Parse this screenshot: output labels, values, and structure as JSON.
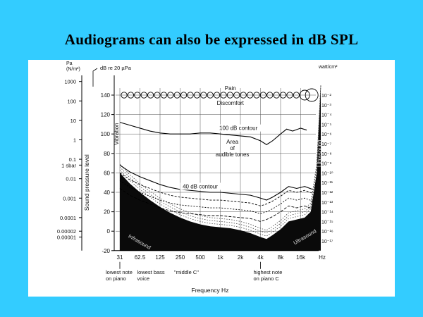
{
  "slide": {
    "title": "Audiograms can also be expressed in dB SPL",
    "background_color": "#33ccff"
  },
  "chart_data": {
    "type": "line",
    "x_labels": [
      "31",
      "62.5",
      "125",
      "250",
      "500",
      "1k",
      "2k",
      "4k",
      "8k",
      "16k"
    ],
    "x_unit": "Hz",
    "x_axis_label": "Frequency   Hz",
    "ylim_db": [
      -20,
      140
    ],
    "db_ticks": [
      "140",
      "120",
      "100",
      "80",
      "60",
      "40",
      "20",
      "0",
      "-20"
    ],
    "left_axis_header": "Pa\n(N/m²)",
    "pa_ticks": [
      {
        "label": "1000",
        "db": 154
      },
      {
        "label": "100",
        "db": 134
      },
      {
        "label": "10",
        "db": 114
      },
      {
        "label": "1",
        "db": 94
      },
      {
        "label": "0.1",
        "db": 74
      },
      {
        "label": "1 sbar",
        "db": 68
      },
      {
        "label": "0.01",
        "db": 54
      },
      {
        "label": "0.001",
        "db": 34
      },
      {
        "label": "0.0001",
        "db": 14
      },
      {
        "label": "0.00002",
        "db": 0
      },
      {
        "label": "0.00001",
        "db": -6
      }
    ],
    "db_ref_label": "dB re 20 µPa",
    "y_axis_label": "Sound pressure level",
    "right_axis_header": "watt/cm²",
    "right_ticks": [
      {
        "label": "10⁻²",
        "db": 140
      },
      {
        "label": "10⁻³",
        "db": 130
      },
      {
        "label": "10⁻⁴",
        "db": 120
      },
      {
        "label": "10⁻⁵",
        "db": 110
      },
      {
        "label": "10⁻⁶",
        "db": 100
      },
      {
        "label": "10⁻⁷",
        "db": 90
      },
      {
        "label": "10⁻⁸",
        "db": 80
      },
      {
        "label": "10⁻⁹",
        "db": 70
      },
      {
        "label": "10⁻¹⁰",
        "db": 60
      },
      {
        "label": "10⁻¹¹",
        "db": 50
      },
      {
        "label": "10⁻¹²",
        "db": 40
      },
      {
        "label": "10⁻¹³",
        "db": 30
      },
      {
        "label": "10⁻¹⁴",
        "db": 20
      },
      {
        "label": "10⁻¹⁵",
        "db": 10
      },
      {
        "label": "10⁻¹⁶",
        "db": 0
      },
      {
        "label": "10⁻¹⁷",
        "db": -10
      }
    ],
    "curves": {
      "pain": {
        "label": "Pain",
        "points": [
          [
            0,
            140
          ],
          [
            1,
            140
          ],
          [
            2,
            140
          ],
          [
            3,
            140
          ],
          [
            4,
            140
          ],
          [
            5,
            140
          ],
          [
            6,
            140
          ],
          [
            7,
            140
          ],
          [
            8,
            140
          ],
          [
            9,
            140
          ]
        ]
      },
      "discomfort": {
        "label": "Discomfort",
        "points": [
          [
            0,
            140
          ],
          [
            1,
            140
          ],
          [
            2,
            140
          ],
          [
            3,
            140
          ],
          [
            4,
            140
          ],
          [
            5,
            140
          ],
          [
            6,
            140
          ],
          [
            7,
            140
          ],
          [
            8,
            140
          ],
          [
            9,
            140
          ]
        ]
      },
      "contour_100": {
        "label": "100 dB contour",
        "points": [
          [
            0,
            112
          ],
          [
            0.5,
            109
          ],
          [
            1,
            106
          ],
          [
            1.5,
            103
          ],
          [
            2,
            101
          ],
          [
            2.5,
            100
          ],
          [
            3,
            100
          ],
          [
            3.5,
            100
          ],
          [
            4,
            101
          ],
          [
            4.5,
            101
          ],
          [
            5,
            100
          ],
          [
            5.5,
            99
          ],
          [
            6,
            98
          ],
          [
            6.5,
            97
          ],
          [
            7,
            93
          ],
          [
            7.3,
            89
          ],
          [
            7.6,
            93
          ],
          [
            8,
            100
          ],
          [
            8.3,
            105
          ],
          [
            8.6,
            103
          ],
          [
            9,
            106
          ],
          [
            9.3,
            104
          ]
        ]
      },
      "contour_40": {
        "label": "40 dB contour",
        "points": [
          [
            0,
            68
          ],
          [
            0.5,
            61
          ],
          [
            1,
            56
          ],
          [
            1.5,
            52
          ],
          [
            2,
            48
          ],
          [
            2.5,
            45
          ],
          [
            3,
            43
          ],
          [
            3.5,
            42
          ],
          [
            4,
            41
          ],
          [
            4.5,
            40
          ],
          [
            5,
            40
          ],
          [
            5.5,
            39
          ],
          [
            6,
            38
          ],
          [
            6.5,
            37
          ],
          [
            7,
            34
          ],
          [
            7.3,
            32
          ],
          [
            7.6,
            35
          ],
          [
            8,
            40
          ],
          [
            8.4,
            46
          ],
          [
            8.8,
            44
          ],
          [
            9.2,
            46
          ],
          [
            9.6,
            43
          ]
        ]
      },
      "threshold": {
        "points": [
          [
            0,
            60
          ],
          [
            0.5,
            49
          ],
          [
            1,
            40
          ],
          [
            1.5,
            32
          ],
          [
            2,
            25
          ],
          [
            2.5,
            19
          ],
          [
            3,
            14
          ],
          [
            3.5,
            10
          ],
          [
            4,
            7
          ],
          [
            4.5,
            5
          ],
          [
            5,
            4
          ],
          [
            5.5,
            3
          ],
          [
            6,
            1
          ],
          [
            6.5,
            -2
          ],
          [
            7,
            -6
          ],
          [
            7.3,
            -8
          ],
          [
            7.6,
            -4
          ],
          [
            8,
            2
          ],
          [
            8.4,
            10
          ],
          [
            8.8,
            12
          ],
          [
            9.2,
            14
          ],
          [
            9.5,
            20
          ],
          [
            9.8,
            60
          ],
          [
            10,
            150
          ]
        ]
      }
    },
    "label_area": "Area\nof\naudible tones",
    "label_vibration": "Vibration",
    "label_ultrasound": "Ultrasound",
    "label_infrasound": "Infrasound",
    "label_ultrasound_low": "Ultrasound",
    "notes": {
      "lowest_piano": "lowest note\non piano",
      "lowest_bass": "lowest bass\nvoice",
      "middle_c": "\"middle C\"",
      "highest_piano": "highest note\non piano C"
    }
  }
}
